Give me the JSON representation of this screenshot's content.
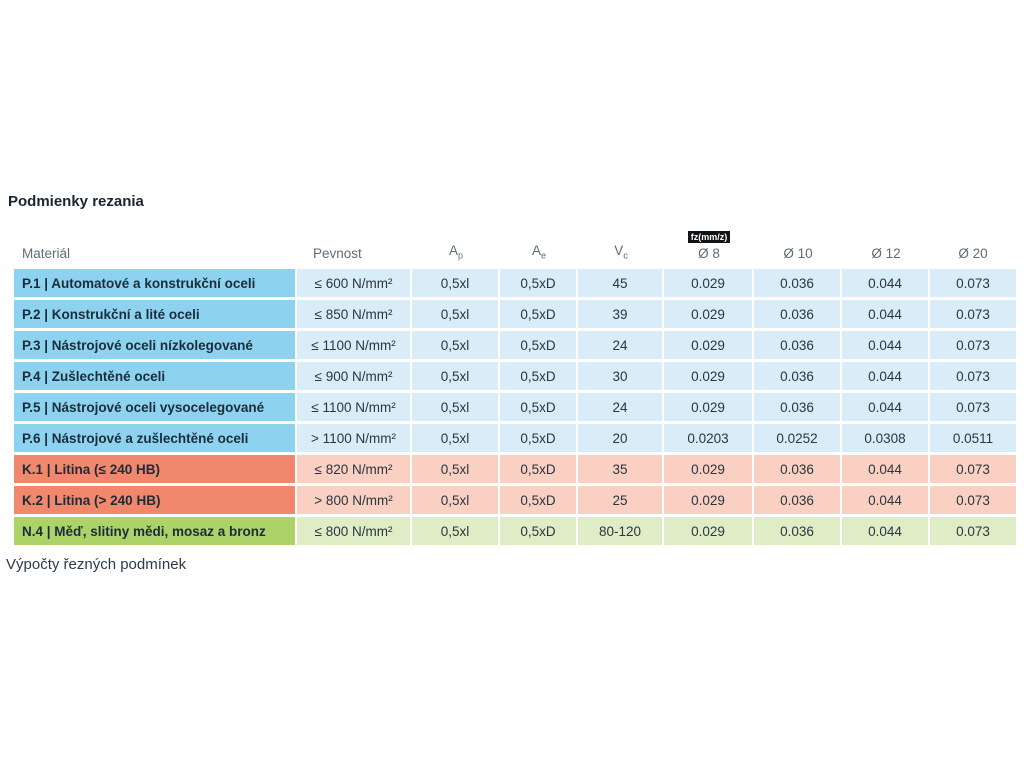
{
  "page": {
    "title": "Podmienky rezania",
    "footer_text": "Výpočty řezných podmínek"
  },
  "table": {
    "fz_badge": "fz(mm/z)",
    "columns": [
      {
        "key": "material",
        "label": "Materiál"
      },
      {
        "key": "pevnost",
        "label": "Pevnost"
      },
      {
        "key": "ap",
        "label": "A",
        "sub": "p"
      },
      {
        "key": "ae",
        "label": "A",
        "sub": "e"
      },
      {
        "key": "vc",
        "label": "V",
        "sub": "c"
      },
      {
        "key": "d8",
        "label": "Ø 8"
      },
      {
        "key": "d10",
        "label": "Ø 10"
      },
      {
        "key": "d12",
        "label": "Ø 12"
      },
      {
        "key": "d20",
        "label": "Ø 20"
      }
    ],
    "group_colors": {
      "steel": {
        "label_bg": "#8dd3ef",
        "row_bg": "#d9edf8"
      },
      "cast_iron": {
        "label_bg": "#f1876b",
        "row_bg": "#f9d0c2"
      },
      "non_ferrous": {
        "label_bg": "#acd268",
        "row_bg": "#dfedc6"
      }
    },
    "rows": [
      {
        "group": "steel",
        "material": "P.1 | Automatové a konstrukční oceli",
        "pevnost": "≤ 600 N/mm²",
        "ap": "0,5xl",
        "ae": "0,5xD",
        "vc": "45",
        "d8": "0.029",
        "d10": "0.036",
        "d12": "0.044",
        "d20": "0.073"
      },
      {
        "group": "steel",
        "material": "P.2 | Konstrukční a lité oceli",
        "pevnost": "≤ 850 N/mm²",
        "ap": "0,5xl",
        "ae": "0,5xD",
        "vc": "39",
        "d8": "0.029",
        "d10": "0.036",
        "d12": "0.044",
        "d20": "0.073"
      },
      {
        "group": "steel",
        "material": "P.3 | Nástrojové oceli nízkolegované",
        "pevnost": "≤ 1100 N/mm²",
        "ap": "0,5xl",
        "ae": "0,5xD",
        "vc": "24",
        "d8": "0.029",
        "d10": "0.036",
        "d12": "0.044",
        "d20": "0.073"
      },
      {
        "group": "steel",
        "material": "P.4 | Zušlechtěné oceli",
        "pevnost": "≤ 900 N/mm²",
        "ap": "0,5xl",
        "ae": "0,5xD",
        "vc": "30",
        "d8": "0.029",
        "d10": "0.036",
        "d12": "0.044",
        "d20": "0.073"
      },
      {
        "group": "steel",
        "material": "P.5 | Nástrojové oceli vysocelegované",
        "pevnost": "≤ 1100 N/mm²",
        "ap": "0,5xl",
        "ae": "0,5xD",
        "vc": "24",
        "d8": "0.029",
        "d10": "0.036",
        "d12": "0.044",
        "d20": "0.073"
      },
      {
        "group": "steel",
        "material": "P.6 | Nástrojové a zušlechtěné oceli",
        "pevnost": "> 1100 N/mm²",
        "ap": "0,5xl",
        "ae": "0,5xD",
        "vc": "20",
        "d8": "0.0203",
        "d10": "0.0252",
        "d12": "0.0308",
        "d20": "0.0511"
      },
      {
        "group": "cast_iron",
        "material": "K.1 | Litina (≤ 240 HB)",
        "pevnost": "≤ 820 N/mm²",
        "ap": "0,5xl",
        "ae": "0,5xD",
        "vc": "35",
        "d8": "0.029",
        "d10": "0.036",
        "d12": "0.044",
        "d20": "0.073"
      },
      {
        "group": "cast_iron",
        "material": "K.2 | Litina (> 240 HB)",
        "pevnost": "> 800 N/mm²",
        "ap": "0,5xl",
        "ae": "0,5xD",
        "vc": "25",
        "d8": "0.029",
        "d10": "0.036",
        "d12": "0.044",
        "d20": "0.073"
      },
      {
        "group": "non_ferrous",
        "material": "N.4 | Měď, slitiny mědi, mosaz a bronz",
        "pevnost": "≤ 800 N/mm²",
        "ap": "0,5xl",
        "ae": "0,5xD",
        "vc": "80-120",
        "d8": "0.029",
        "d10": "0.036",
        "d12": "0.044",
        "d20": "0.073"
      }
    ]
  }
}
